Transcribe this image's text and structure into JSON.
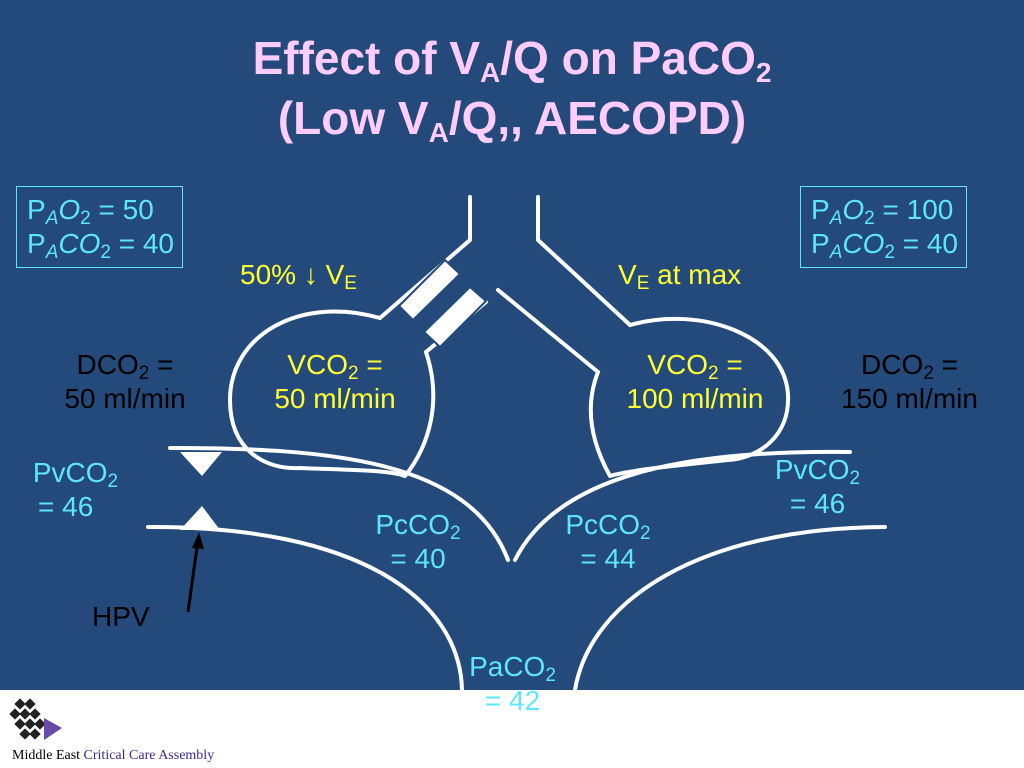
{
  "title": {
    "line1_pre": "Effect of V",
    "line1_sub": "A",
    "line1_mid": "/Q on PaCO",
    "line1_sub2": "2",
    "line2_pre": "(Low V",
    "line2_sub": "A",
    "line2_post": "/Q,, AECOPD)"
  },
  "left_box": {
    "l1_p": "P",
    "l1_sub": "A",
    "l1_o": "O",
    "l1_sub2": "2",
    "l1_val": " = 50",
    "l2_p": "P",
    "l2_sub": "A",
    "l2_co": "CO",
    "l2_sub2": "2",
    "l2_val": " = 40"
  },
  "right_box": {
    "l1_p": "P",
    "l1_sub": "A",
    "l1_o": "O",
    "l1_sub2": "2",
    "l1_val": " = 100",
    "l2_p": "P",
    "l2_sub": "A",
    "l2_co": "CO",
    "l2_sub2": "2",
    "l2_val": " = 40"
  },
  "left_ventilation": {
    "pre": "50% ↓ V",
    "sub": "E"
  },
  "right_ventilation": {
    "pre": "V",
    "sub": "E",
    "post": " at max"
  },
  "left_alveolus": {
    "l1_pre": "VCO",
    "l1_sub": "2",
    "l1_post": " =",
    "l2": "50 ml/min"
  },
  "right_alveolus": {
    "l1_pre": "VCO",
    "l1_sub": "2",
    "l1_post": " =",
    "l2": "100 ml/min"
  },
  "left_dco2": {
    "l1_pre": "DCO",
    "l1_sub": "2",
    "l1_post": " =",
    "l2": "50 ml/min"
  },
  "right_dco2": {
    "l1_pre": "DCO",
    "l1_sub": "2",
    "l1_post": " =",
    "l2": "150 ml/min"
  },
  "left_pvco2": {
    "l1_pre": "PvCO",
    "l1_sub": "2",
    "l2": "= 46"
  },
  "right_pvco2": {
    "l1_pre": "PvCO",
    "l1_sub": "2",
    "l2": "= 46"
  },
  "left_pcco2": {
    "l1_pre": "PcCO",
    "l1_sub": "2",
    "l2": "= 40"
  },
  "right_pcco2": {
    "l1_pre": "PcCO",
    "l1_sub": "2",
    "l2": "= 44"
  },
  "paco2": {
    "l1_pre": "PaCO",
    "l1_sub": "2",
    "l2": "= 42"
  },
  "hpv_label": "HPV",
  "footer": {
    "word1": "Middle East",
    "rest": " Critical Care Assembly"
  },
  "colors": {
    "background": "#234a7a",
    "title": "#ffccff",
    "cyan": "#5fe6ff",
    "yellow": "#ffff33",
    "lines": "#ffffff"
  }
}
